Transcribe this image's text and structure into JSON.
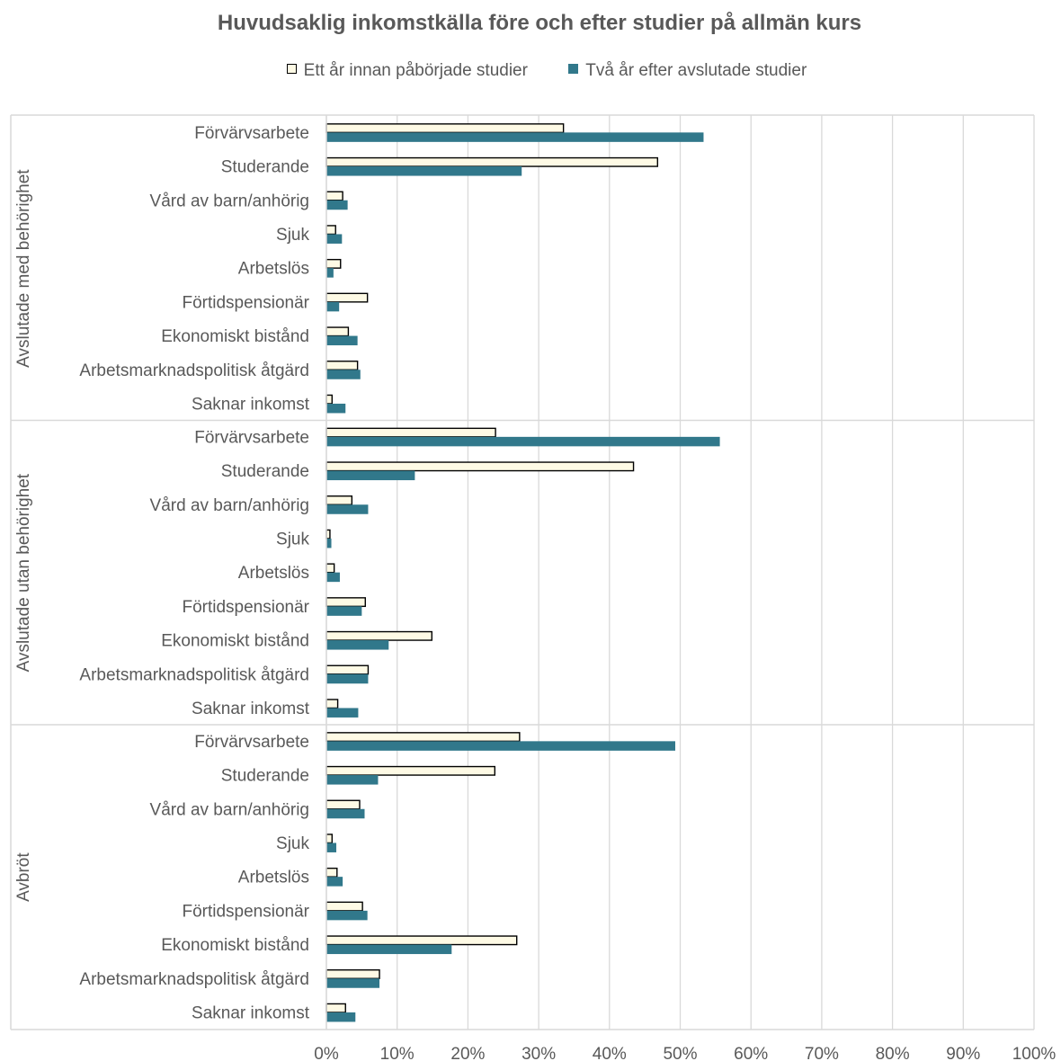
{
  "chart_data": {
    "type": "bar",
    "orientation": "horizontal",
    "title": "Huvudsaklig inkomstkälla före och efter studier på allmän kurs",
    "legend_position": "top",
    "grid": true,
    "xlim": [
      0,
      100
    ],
    "x_ticks": [
      "0%",
      "10%",
      "20%",
      "30%",
      "40%",
      "50%",
      "60%",
      "70%",
      "80%",
      "90%",
      "100%"
    ],
    "categories": [
      "Förvärvsarbete",
      "Studerande",
      "Vård av barn/anhörig",
      "Sjuk",
      "Arbetslös",
      "Förtidspensionär",
      "Ekonomiskt bistånd",
      "Arbetsmarknadspolitisk åtgärd",
      "Saknar inkomst"
    ],
    "groups": [
      {
        "name": "Avslutade med behörighet",
        "series": [
          {
            "name": "Ett år innan påbörjade studier",
            "values": [
              33.5,
              46.8,
              2.3,
              1.3,
              2.0,
              5.8,
              3.1,
              4.4,
              0.8
            ]
          },
          {
            "name": "Två år efter avslutade studier",
            "values": [
              53.3,
              27.6,
              3.0,
              2.2,
              1.0,
              1.8,
              4.4,
              4.8,
              2.7
            ]
          }
        ]
      },
      {
        "name": "Avslutade utan behörighet",
        "series": [
          {
            "name": "Ett år innan påbörjade studier",
            "values": [
              23.9,
              43.4,
              3.6,
              0.5,
              1.1,
              5.5,
              14.9,
              5.9,
              1.6
            ]
          },
          {
            "name": "Två år efter avslutade studier",
            "values": [
              55.6,
              12.5,
              5.9,
              0.7,
              1.9,
              5.0,
              8.8,
              5.9,
              4.5
            ]
          }
        ]
      },
      {
        "name": "Avbröt",
        "series": [
          {
            "name": "Ett år innan påbörjade studier",
            "values": [
              27.3,
              23.8,
              4.7,
              0.8,
              1.5,
              5.1,
              26.9,
              7.5,
              2.7
            ]
          },
          {
            "name": "Två år efter avslutade studier",
            "values": [
              49.3,
              7.3,
              5.4,
              1.4,
              2.3,
              5.8,
              17.7,
              7.5,
              4.1
            ]
          }
        ]
      }
    ],
    "colors": {
      "series_0_fill": "#fefae5",
      "series_0_stroke": "#000000",
      "series_1_fill": "#31788b",
      "grid": "#d9d9d9",
      "text": "#595959"
    }
  }
}
